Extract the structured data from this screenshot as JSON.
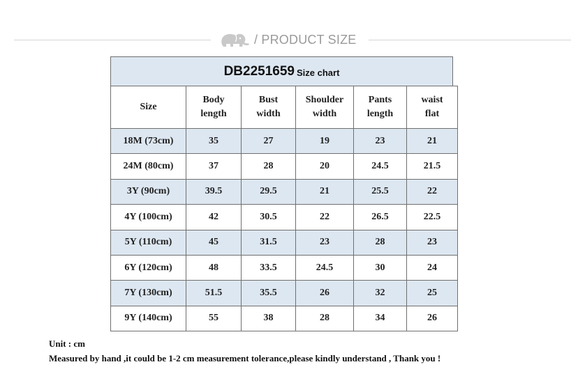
{
  "header": {
    "title": "/ PRODUCT SIZE",
    "logo_icon": "elephant-icon"
  },
  "chart": {
    "model": "DB2251659",
    "subtitle": "Size chart",
    "columns": [
      "Size",
      "Body length",
      "Bust width",
      "Shoulder width",
      "Pants length",
      "waist flat"
    ],
    "rows": [
      [
        "18M (73cm)",
        "35",
        "27",
        "19",
        "23",
        "21"
      ],
      [
        "24M (80cm)",
        "37",
        "28",
        "20",
        "24.5",
        "21.5"
      ],
      [
        "3Y (90cm)",
        "39.5",
        "29.5",
        "21",
        "25.5",
        "22"
      ],
      [
        "4Y (100cm)",
        "42",
        "30.5",
        "22",
        "26.5",
        "22.5"
      ],
      [
        "5Y (110cm)",
        "45",
        "31.5",
        "23",
        "28",
        "23"
      ],
      [
        "6Y (120cm)",
        "48",
        "33.5",
        "24.5",
        "30",
        "24"
      ],
      [
        "7Y (130cm)",
        "51.5",
        "35.5",
        "26",
        "32",
        "25"
      ],
      [
        "9Y (140cm)",
        "55",
        "38",
        "28",
        "34",
        "26"
      ]
    ],
    "shade_color": "#dde7f1",
    "border_color": "#6f6f6f"
  },
  "notes": {
    "unit": "Unit : cm",
    "measure": "Measured by hand ,it could be 1-2 cm measurement tolerance,please kindly understand , Thank you !"
  }
}
